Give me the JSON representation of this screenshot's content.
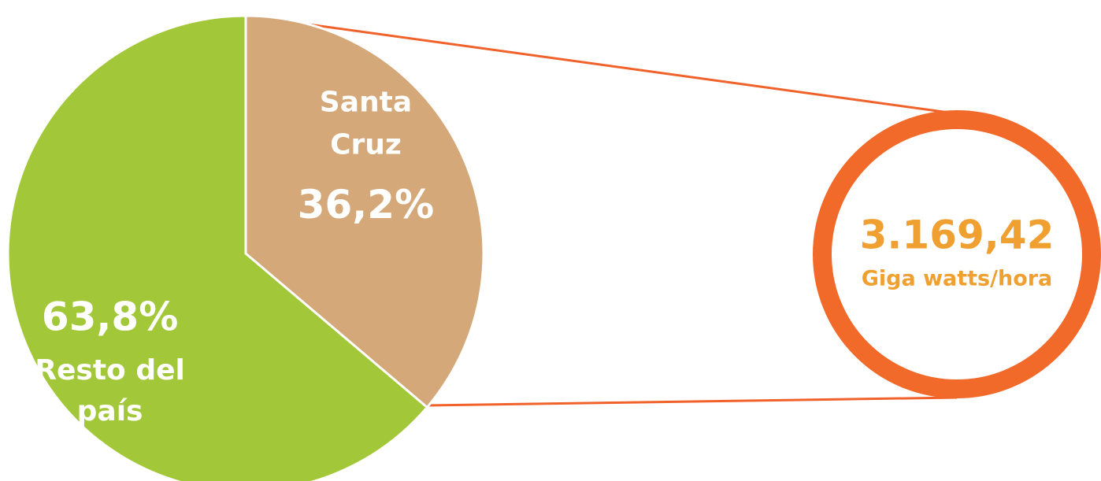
{
  "chart_data": {
    "type": "pie",
    "categories": [
      "Santa Cruz",
      "Resto del país"
    ],
    "values": [
      36.2,
      63.8
    ],
    "value_labels": [
      "36,2%",
      "63,8%"
    ],
    "colors": [
      "#d4a878",
      "#a2c83a"
    ],
    "callout": {
      "label": "3.169,42",
      "unit": "Giga watts/hora",
      "color": "#f26a2a"
    }
  }
}
